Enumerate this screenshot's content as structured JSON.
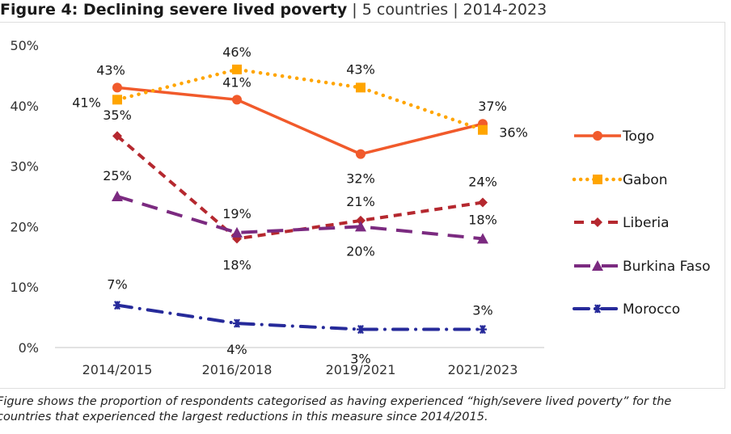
{
  "title": {
    "bold": "Figure 4: Declining severe lived poverty",
    "rest": " | 5 countries | 2014-2023"
  },
  "caption": "Figure shows the proportion of respondents categorised as having experienced “high/severe lived poverty” for the countries that experienced the largest reductions in this measure since 2014/2015.",
  "chart_data": {
    "type": "line",
    "title": "Figure 4: Declining severe lived poverty | 5 countries | 2014-2023",
    "xlabel": "",
    "ylabel": "",
    "categories": [
      "2014/2015",
      "2016/2018",
      "2019/2021",
      "2021/2023"
    ],
    "ylim": [
      0,
      50
    ],
    "yticks": [
      0,
      10,
      20,
      30,
      40,
      50
    ],
    "ytick_labels": [
      "0%",
      "10%",
      "20%",
      "30%",
      "40%",
      "50%"
    ],
    "grid": "baseline only",
    "legend": "right",
    "series": [
      {
        "name": "Togo",
        "color": "#f15a2b",
        "style": "solid",
        "marker": "circle",
        "values": [
          43,
          41,
          32,
          37
        ],
        "labels": [
          "43%",
          "41%",
          "32%",
          "37%"
        ]
      },
      {
        "name": "Gabon",
        "color": "#ffa500",
        "style": "dotted",
        "marker": "square",
        "values": [
          41,
          46,
          43,
          36
        ],
        "labels": [
          "41%",
          "46%",
          "43%",
          "36%"
        ]
      },
      {
        "name": "Liberia",
        "color": "#b5282f",
        "style": "dashed",
        "marker": "diamond",
        "values": [
          35,
          18,
          21,
          24
        ],
        "labels": [
          "35%",
          "18%",
          "21%",
          "24%"
        ]
      },
      {
        "name": "Burkina Faso",
        "color": "#7b2a80",
        "style": "longdash",
        "marker": "triangle",
        "values": [
          25,
          19,
          20,
          18
        ],
        "labels": [
          "25%",
          "19%",
          "20%",
          "18%"
        ]
      },
      {
        "name": "Morocco",
        "color": "#262a9a",
        "style": "dashdot",
        "marker": "asterisk",
        "values": [
          7,
          4,
          3,
          3
        ],
        "labels": [
          "7%",
          "4%",
          "3%",
          "3%"
        ]
      }
    ]
  }
}
